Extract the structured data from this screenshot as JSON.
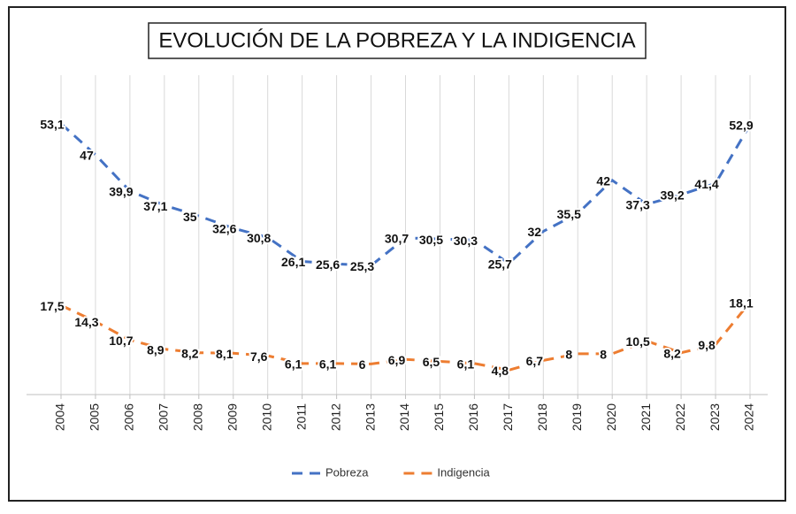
{
  "chart_data": {
    "type": "line",
    "title": "EVOLUCIÓN DE LA POBREZA Y LA INDIGENCIA",
    "categories": [
      "2004",
      "2005",
      "2006",
      "2007",
      "2008",
      "2009",
      "2010",
      "2011",
      "2012",
      "2013",
      "2014",
      "2015",
      "2016",
      "2017",
      "2018",
      "2019",
      "2020",
      "2021",
      "2022",
      "2023",
      "2024"
    ],
    "series": [
      {
        "name": "Pobreza",
        "color": "#4472c4",
        "values": [
          53.1,
          47,
          39.9,
          37.1,
          35,
          32.6,
          30.8,
          26.1,
          25.6,
          25.3,
          30.7,
          30.5,
          30.3,
          25.7,
          32,
          35.5,
          42,
          37.3,
          39.2,
          41.4,
          52.9
        ],
        "value_labels": [
          "53,1",
          "47",
          "39,9",
          "37,1",
          "35",
          "32,6",
          "30,8",
          "26,1",
          "25,6",
          "25,3",
          "30,7",
          "30,5",
          "30,3",
          "25,7",
          "32",
          "35,5",
          "42",
          "37,3",
          "39,2",
          "41,4",
          "52,9"
        ]
      },
      {
        "name": "Indigencia",
        "color": "#ed7d31",
        "values": [
          17.5,
          14.3,
          10.7,
          8.9,
          8.2,
          8.1,
          7.6,
          6.1,
          6.1,
          6,
          6.9,
          6.5,
          6.1,
          4.8,
          6.7,
          8,
          8,
          10.5,
          8.2,
          9.8,
          18.1
        ],
        "value_labels": [
          "17,5",
          "14,3",
          "10,7",
          "8,9",
          "8,2",
          "8,1",
          "7,6",
          "6,1",
          "6,1",
          "6",
          "6,9",
          "6,5",
          "6,1",
          "4,8",
          "6,7",
          "8",
          "8",
          "10,5",
          "8,2",
          "9,8",
          "18,1"
        ]
      }
    ],
    "ylim": [
      0,
      60
    ],
    "grid": true,
    "legend": "bottom"
  }
}
